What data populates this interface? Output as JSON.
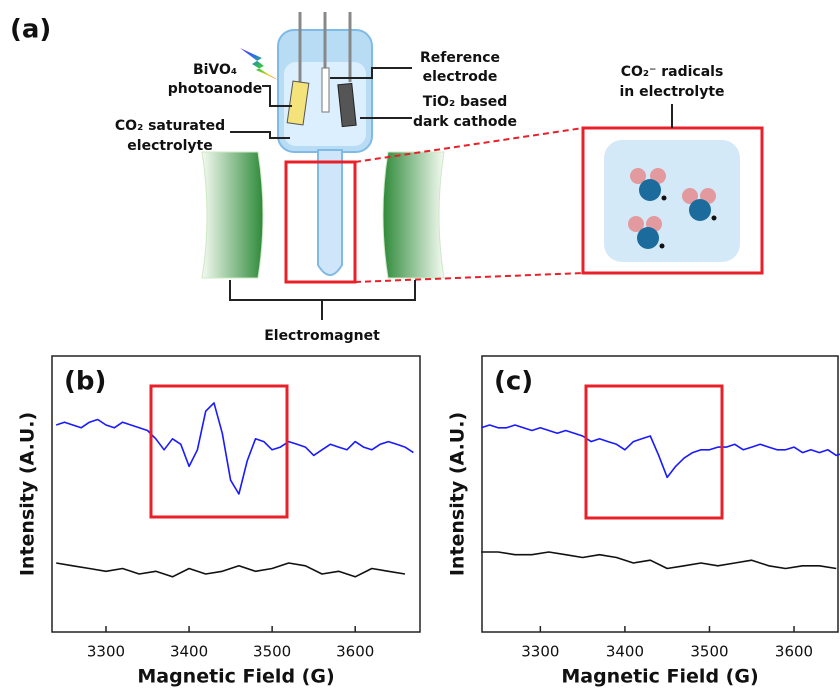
{
  "figure": {
    "panel_a": {
      "label": "(a)",
      "photoanode": [
        "BiVO₄",
        "photoanode"
      ],
      "electrolyte": [
        "CO₂ saturated",
        "electrolyte"
      ],
      "reference": [
        "Reference",
        "electrode"
      ],
      "cathode": [
        "TiO₂ based",
        "dark cathode"
      ],
      "radicals": [
        "CO₂⁻ radicals",
        "in electrolyte"
      ],
      "magnet": "Electromagnet"
    }
  },
  "chart_data": [
    {
      "type": "line",
      "panel_label": "(b)",
      "x_label": "Magnetic Field (G)",
      "y_label": "Intensity (A.U.)",
      "xlim": [
        3235,
        3678
      ],
      "xticks": [
        3300,
        3400,
        3500,
        3600
      ],
      "ylim": [
        0,
        100
      ],
      "series": [
        {
          "color": "#1a1aff",
          "x": [
            3240,
            3250,
            3260,
            3270,
            3280,
            3290,
            3300,
            3310,
            3320,
            3330,
            3340,
            3350,
            3360,
            3370,
            3380,
            3390,
            3400,
            3410,
            3420,
            3430,
            3440,
            3450,
            3460,
            3470,
            3480,
            3490,
            3500,
            3510,
            3520,
            3530,
            3540,
            3550,
            3560,
            3570,
            3580,
            3590,
            3600,
            3610,
            3620,
            3630,
            3640,
            3650,
            3660,
            3670
          ],
          "values": [
            75,
            76,
            75,
            74,
            76,
            77,
            75,
            74,
            76,
            75,
            74,
            73,
            70,
            66,
            70,
            68,
            60,
            66,
            80,
            83,
            72,
            55,
            50,
            62,
            70,
            69,
            66,
            67,
            69,
            68,
            67,
            64,
            66,
            68,
            67,
            66,
            69,
            67,
            66,
            68,
            69,
            68,
            67,
            65
          ]
        },
        {
          "color": "#111111",
          "x": [
            3240,
            3260,
            3280,
            3300,
            3320,
            3340,
            3360,
            3380,
            3400,
            3420,
            3440,
            3460,
            3480,
            3500,
            3520,
            3540,
            3560,
            3580,
            3600,
            3620,
            3640,
            3660
          ],
          "values": [
            25,
            24,
            23,
            22,
            23,
            21,
            22,
            20,
            23,
            21,
            22,
            24,
            22,
            23,
            25,
            24,
            21,
            22,
            20,
            23,
            22,
            21
          ]
        }
      ]
    },
    {
      "type": "line",
      "panel_label": "(c)",
      "x_label": "Magnetic Field (G)",
      "y_label": "Intensity (A.U.)",
      "xlim": [
        3231,
        3652
      ],
      "xticks": [
        3300,
        3400,
        3500,
        3600
      ],
      "ylim": [
        0,
        100
      ],
      "series": [
        {
          "color": "#1a1aff",
          "x": [
            3230,
            3240,
            3250,
            3260,
            3270,
            3280,
            3290,
            3300,
            3310,
            3320,
            3330,
            3340,
            3350,
            3360,
            3370,
            3380,
            3390,
            3400,
            3410,
            3420,
            3430,
            3440,
            3450,
            3460,
            3470,
            3480,
            3490,
            3500,
            3510,
            3520,
            3530,
            3540,
            3550,
            3560,
            3570,
            3580,
            3590,
            3600,
            3610,
            3620,
            3630,
            3640,
            3650,
            3660
          ],
          "values": [
            74,
            75,
            74,
            74,
            75,
            74,
            73,
            74,
            73,
            72,
            73,
            72,
            71,
            69,
            70,
            69,
            68,
            66,
            69,
            70,
            71,
            64,
            56,
            60,
            63,
            65,
            66,
            66,
            67,
            67,
            68,
            66,
            67,
            68,
            67,
            66,
            66,
            67,
            65,
            66,
            65,
            66,
            64,
            65
          ]
        },
        {
          "color": "#111111",
          "x": [
            3230,
            3250,
            3270,
            3290,
            3310,
            3330,
            3350,
            3370,
            3390,
            3410,
            3430,
            3450,
            3470,
            3490,
            3510,
            3530,
            3550,
            3570,
            3590,
            3610,
            3630,
            3650
          ],
          "values": [
            29,
            29,
            28,
            28,
            29,
            28,
            27,
            28,
            27,
            25,
            26,
            23,
            24,
            25,
            24,
            25,
            26,
            24,
            23,
            24,
            24,
            23
          ]
        }
      ]
    }
  ]
}
